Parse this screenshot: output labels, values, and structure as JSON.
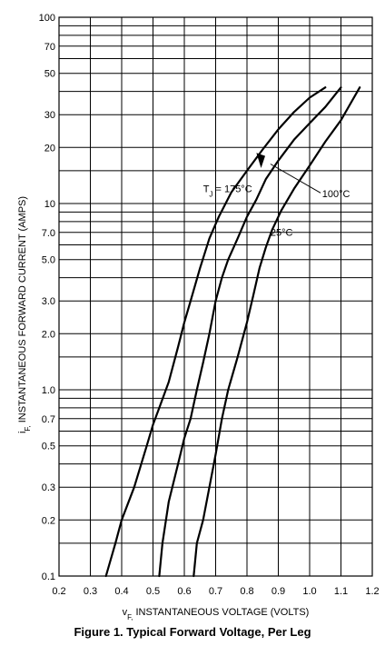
{
  "caption": "Figure 1. Typical Forward Voltage, Per Leg",
  "chart_data": {
    "type": "line",
    "title": "Figure 1. Typical Forward Voltage, Per Leg",
    "xlabel": {
      "main": "v",
      "sub": "F,",
      "rest": " INSTANTANEOUS VOLTAGE (VOLTS)"
    },
    "ylabel": {
      "main": "i",
      "sub": "F,",
      "rest": " INSTANTANEOUS FORWARD CURRENT (AMPS)"
    },
    "x_scale": "linear",
    "y_scale": "log",
    "xlim": [
      0.2,
      1.2
    ],
    "ylim": [
      0.1,
      100
    ],
    "x_ticks": [
      {
        "value": 0.2,
        "label": "0.2"
      },
      {
        "value": 0.3,
        "label": "0.3"
      },
      {
        "value": 0.4,
        "label": "0.4"
      },
      {
        "value": 0.5,
        "label": "0.5"
      },
      {
        "value": 0.6,
        "label": "0.6"
      },
      {
        "value": 0.7,
        "label": "0.7"
      },
      {
        "value": 0.8,
        "label": "0.8"
      },
      {
        "value": 0.9,
        "label": "0.9"
      },
      {
        "value": 1.0,
        "label": "1.0"
      },
      {
        "value": 1.1,
        "label": "1.1"
      },
      {
        "value": 1.2,
        "label": "1.2"
      }
    ],
    "y_ticks": [
      {
        "value": 0.1,
        "label": "0.1"
      },
      {
        "value": 0.2,
        "label": "0.2"
      },
      {
        "value": 0.3,
        "label": "0.3"
      },
      {
        "value": 0.5,
        "label": "0.5"
      },
      {
        "value": 0.7,
        "label": "0.7"
      },
      {
        "value": 1.0,
        "label": "1.0"
      },
      {
        "value": 2.0,
        "label": "2.0"
      },
      {
        "value": 3.0,
        "label": "3.0"
      },
      {
        "value": 5.0,
        "label": "5.0"
      },
      {
        "value": 7.0,
        "label": "7.0"
      },
      {
        "value": 10,
        "label": "10"
      },
      {
        "value": 20,
        "label": "20"
      },
      {
        "value": 30,
        "label": "30"
      },
      {
        "value": 50,
        "label": "50"
      },
      {
        "value": 70,
        "label": "70"
      },
      {
        "value": 100,
        "label": "100"
      }
    ],
    "y_gridlines": [
      0.1,
      0.15,
      0.2,
      0.3,
      0.4,
      0.5,
      0.6,
      0.7,
      0.8,
      0.9,
      1,
      1.5,
      2,
      3,
      4,
      5,
      6,
      7,
      8,
      9,
      10,
      15,
      20,
      30,
      40,
      50,
      60,
      70,
      80,
      90,
      100
    ],
    "grid": true,
    "series": [
      {
        "name": "T_J = 175°C",
        "label_main": "T",
        "label_sub": "J",
        "label_rest": " = 175°C",
        "points": [
          [
            0.35,
            0.1
          ],
          [
            0.38,
            0.15
          ],
          [
            0.4,
            0.2
          ],
          [
            0.44,
            0.3
          ],
          [
            0.48,
            0.5
          ],
          [
            0.5,
            0.65
          ],
          [
            0.52,
            0.8
          ],
          [
            0.55,
            1.1
          ],
          [
            0.58,
            1.7
          ],
          [
            0.6,
            2.3
          ],
          [
            0.62,
            3.0
          ],
          [
            0.65,
            4.5
          ],
          [
            0.68,
            6.5
          ],
          [
            0.71,
            8.5
          ],
          [
            0.75,
            11.5
          ],
          [
            0.8,
            15
          ],
          [
            0.85,
            19.5
          ],
          [
            0.9,
            25
          ],
          [
            0.95,
            31
          ],
          [
            1.0,
            37
          ],
          [
            1.05,
            42
          ]
        ]
      },
      {
        "name": "100°C",
        "label_main": "100°C",
        "label_sub": "",
        "label_rest": "",
        "points": [
          [
            0.52,
            0.1
          ],
          [
            0.53,
            0.15
          ],
          [
            0.55,
            0.25
          ],
          [
            0.58,
            0.4
          ],
          [
            0.6,
            0.55
          ],
          [
            0.62,
            0.7
          ],
          [
            0.64,
            1.0
          ],
          [
            0.66,
            1.4
          ],
          [
            0.68,
            2.0
          ],
          [
            0.7,
            3.0
          ],
          [
            0.72,
            4.0
          ],
          [
            0.74,
            5.0
          ],
          [
            0.77,
            6.5
          ],
          [
            0.8,
            8.5
          ],
          [
            0.83,
            10.5
          ],
          [
            0.86,
            13.5
          ],
          [
            0.9,
            17
          ],
          [
            0.95,
            22
          ],
          [
            1.0,
            27
          ],
          [
            1.05,
            33
          ],
          [
            1.1,
            42
          ]
        ]
      },
      {
        "name": "25°C",
        "label_main": "25°C",
        "label_sub": "",
        "label_rest": "",
        "points": [
          [
            0.63,
            0.1
          ],
          [
            0.64,
            0.15
          ],
          [
            0.66,
            0.2
          ],
          [
            0.68,
            0.3
          ],
          [
            0.7,
            0.45
          ],
          [
            0.72,
            0.7
          ],
          [
            0.74,
            1.0
          ],
          [
            0.77,
            1.5
          ],
          [
            0.8,
            2.3
          ],
          [
            0.82,
            3.2
          ],
          [
            0.84,
            4.5
          ],
          [
            0.86,
            5.8
          ],
          [
            0.88,
            7.2
          ],
          [
            0.91,
            9.2
          ],
          [
            0.95,
            12
          ],
          [
            1.0,
            16
          ],
          [
            1.05,
            21.5
          ],
          [
            1.1,
            28
          ],
          [
            1.16,
            42
          ]
        ]
      }
    ]
  }
}
